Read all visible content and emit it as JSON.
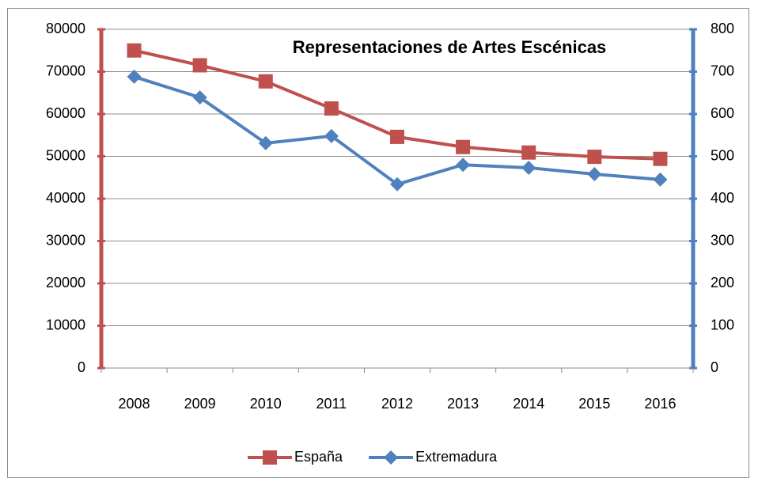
{
  "chart_data": {
    "type": "line",
    "title": "Representaciones de Artes Escénicas",
    "categories": [
      "2008",
      "2009",
      "2010",
      "2011",
      "2012",
      "2013",
      "2014",
      "2015",
      "2016"
    ],
    "series": [
      {
        "name": "España",
        "color": "#c0504d",
        "marker": "square",
        "values": [
          75000,
          71500,
          67700,
          61300,
          54600,
          52200,
          50900,
          49900,
          49400
        ]
      },
      {
        "name": "Extremadura",
        "color": "#4f81bd",
        "marker": "diamond",
        "axis": "y2",
        "values": [
          688,
          639,
          531,
          548,
          434,
          480,
          473,
          458,
          445
        ]
      }
    ],
    "ylim": [
      0,
      80000
    ],
    "yticks": [
      0,
      10000,
      20000,
      30000,
      40000,
      50000,
      60000,
      70000,
      80000
    ],
    "y2lim": [
      0,
      800
    ],
    "y2ticks": [
      0,
      100,
      200,
      300,
      400,
      500,
      600,
      700,
      800
    ],
    "grid": true,
    "legend": "bottom"
  }
}
